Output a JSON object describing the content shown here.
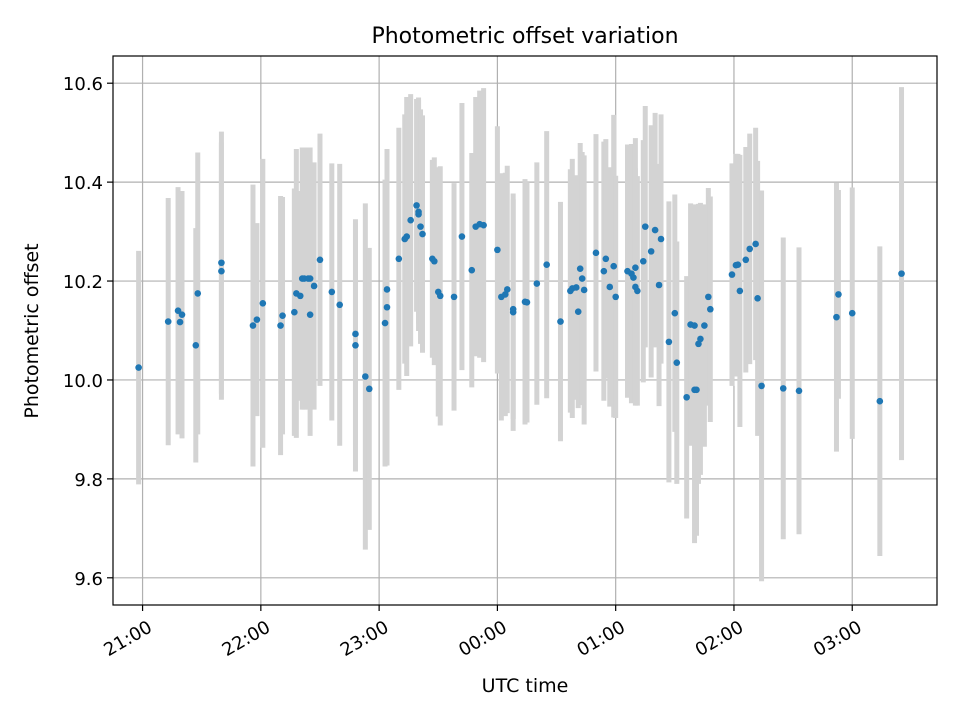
{
  "chart_data": {
    "type": "scatter",
    "title": "Photometric offset variation",
    "xlabel": "UTC time",
    "ylabel": "Photometric offset",
    "x_unit": "UTC time (HH:MM, spans midnight)",
    "xlim": [
      "20:45",
      "03:43"
    ],
    "ylim": [
      9.545,
      10.655
    ],
    "xticks": [
      "21:00",
      "22:00",
      "23:00",
      "00:00",
      "01:00",
      "02:00",
      "03:00"
    ],
    "yticks": [
      "9.6",
      "9.8",
      "10.0",
      "10.2",
      "10.4",
      "10.6"
    ],
    "grid": true,
    "marker_color": "#1f77b4",
    "errorbar_color": "#d3d3d3",
    "points": [
      [
        "20:58",
        10.025,
        0.236
      ],
      [
        "21:13",
        10.118,
        0.25
      ],
      [
        "21:18",
        10.14,
        0.25
      ],
      [
        "21:19",
        10.117,
        0.215
      ],
      [
        "21:20",
        10.132,
        0.25
      ],
      [
        "21:27",
        10.07,
        0.237
      ],
      [
        "21:28",
        10.175,
        0.285
      ],
      [
        "21:40",
        10.237,
        0.265
      ],
      [
        "21:40",
        10.22,
        0.26
      ],
      [
        "21:56",
        10.11,
        0.285
      ],
      [
        "21:58",
        10.122,
        0.195
      ],
      [
        "22:01",
        10.155,
        0.292
      ],
      [
        "22:10",
        10.11,
        0.262
      ],
      [
        "22:11",
        10.13,
        0.24
      ],
      [
        "22:17",
        10.137,
        0.25
      ],
      [
        "22:18",
        10.175,
        0.292
      ],
      [
        "22:20",
        10.17,
        0.212
      ],
      [
        "22:21",
        10.205,
        0.265
      ],
      [
        "22:22",
        10.205,
        0.265
      ],
      [
        "22:24",
        10.205,
        0.265
      ],
      [
        "22:25",
        10.205,
        0.265
      ],
      [
        "22:25",
        10.132,
        0.245
      ],
      [
        "22:27",
        10.19,
        0.25
      ],
      [
        "22:30",
        10.243,
        0.255
      ],
      [
        "22:36",
        10.178,
        0.26
      ],
      [
        "22:40",
        10.152,
        0.285
      ],
      [
        "22:48",
        10.07,
        0.255
      ],
      [
        "22:48",
        10.093,
        0.225
      ],
      [
        "22:53",
        10.007,
        0.35
      ],
      [
        "22:55",
        9.982,
        0.285
      ],
      [
        "23:03",
        10.115,
        0.29
      ],
      [
        "23:04",
        10.147,
        0.32
      ],
      [
        "23:04",
        10.183,
        0.25
      ],
      [
        "23:10",
        10.245,
        0.265
      ],
      [
        "23:13",
        10.285,
        0.252
      ],
      [
        "23:14",
        10.29,
        0.282
      ],
      [
        "23:16",
        10.323,
        0.255
      ],
      [
        "23:19",
        10.353,
        0.215
      ],
      [
        "23:20",
        10.34,
        0.226
      ],
      [
        "23:20",
        10.335,
        0.236
      ],
      [
        "23:21",
        10.31,
        0.237
      ],
      [
        "23:22",
        10.295,
        0.24
      ],
      [
        "23:27",
        10.245,
        0.2
      ],
      [
        "23:28",
        10.24,
        0.21
      ],
      [
        "23:30",
        10.178,
        0.252
      ],
      [
        "23:31",
        10.17,
        0.262
      ],
      [
        "23:38",
        10.168,
        0.23
      ],
      [
        "23:42",
        10.29,
        0.27
      ],
      [
        "23:47",
        10.222,
        0.237
      ],
      [
        "23:49",
        10.31,
        0.262
      ],
      [
        "23:51",
        10.315,
        0.27
      ],
      [
        "23:53",
        10.313,
        0.277
      ],
      [
        "00:00",
        10.263,
        0.25
      ],
      [
        "00:02",
        10.168,
        0.25
      ],
      [
        "00:04",
        10.173,
        0.246
      ],
      [
        "00:05",
        10.183,
        0.25
      ],
      [
        "00:08",
        10.143,
        0.222
      ],
      [
        "00:08",
        10.137,
        0.24
      ],
      [
        "00:14",
        10.158,
        0.248
      ],
      [
        "00:15",
        10.157,
        0.243
      ],
      [
        "00:20",
        10.195,
        0.245
      ],
      [
        "00:25",
        10.233,
        0.27
      ],
      [
        "00:32",
        10.118,
        0.242
      ],
      [
        "00:37",
        10.18,
        0.246
      ],
      [
        "00:38",
        10.185,
        0.262
      ],
      [
        "00:40",
        10.187,
        0.227
      ],
      [
        "00:41",
        10.138,
        0.195
      ],
      [
        "00:42",
        10.225,
        0.254
      ],
      [
        "00:43",
        10.205,
        0.256
      ],
      [
        "00:44",
        10.182,
        0.272
      ],
      [
        "00:50",
        10.257,
        0.24
      ],
      [
        "00:54",
        10.22,
        0.262
      ],
      [
        "00:55",
        10.245,
        0.242
      ],
      [
        "00:57",
        10.188,
        0.242
      ],
      [
        "00:59",
        10.23,
        0.306
      ],
      [
        "01:00",
        10.168,
        0.245
      ],
      [
        "01:06",
        10.22,
        0.256
      ],
      [
        "01:08",
        10.215,
        0.262
      ],
      [
        "01:09",
        10.207,
        0.212
      ],
      [
        "01:10",
        10.227,
        0.262
      ],
      [
        "01:10",
        10.188,
        0.24
      ],
      [
        "01:11",
        10.18,
        0.232
      ],
      [
        "01:14",
        10.24,
        0.245
      ],
      [
        "01:15",
        10.31,
        0.244
      ],
      [
        "01:18",
        10.26,
        0.255
      ],
      [
        "01:20",
        10.303,
        0.237
      ],
      [
        "01:22",
        10.192,
        0.245
      ],
      [
        "01:23",
        10.285,
        0.252
      ],
      [
        "01:27",
        10.077,
        0.284
      ],
      [
        "01:30",
        10.135,
        0.24
      ],
      [
        "01:31",
        10.035,
        0.245
      ],
      [
        "01:36",
        9.965,
        0.245
      ],
      [
        "01:38",
        10.112,
        0.245
      ],
      [
        "01:40",
        10.11,
        0.245
      ],
      [
        "01:40",
        9.98,
        0.31
      ],
      [
        "01:41",
        9.98,
        0.295
      ],
      [
        "01:42",
        10.073,
        0.283
      ],
      [
        "01:43",
        10.083,
        0.275
      ],
      [
        "01:45",
        10.11,
        0.245
      ],
      [
        "01:47",
        10.168,
        0.22
      ],
      [
        "01:48",
        10.143,
        0.228
      ],
      [
        "01:59",
        10.213,
        0.225
      ],
      [
        "02:01",
        10.232,
        0.225
      ],
      [
        "02:02",
        10.233,
        0.224
      ],
      [
        "02:03",
        10.18,
        0.275
      ],
      [
        "02:06",
        10.243,
        0.228
      ],
      [
        "02:08",
        10.265,
        0.233
      ],
      [
        "02:11",
        10.275,
        0.235
      ],
      [
        "02:12",
        10.165,
        0.278
      ],
      [
        "02:14",
        9.988,
        0.395
      ],
      [
        "02:25",
        9.983,
        0.305
      ],
      [
        "02:33",
        9.978,
        0.29
      ],
      [
        "02:52",
        10.127,
        0.272
      ],
      [
        "02:53",
        10.173,
        0.211
      ],
      [
        "03:00",
        10.135,
        0.254
      ],
      [
        "03:14",
        9.957,
        0.313
      ],
      [
        "03:25",
        10.215,
        0.377
      ]
    ]
  }
}
